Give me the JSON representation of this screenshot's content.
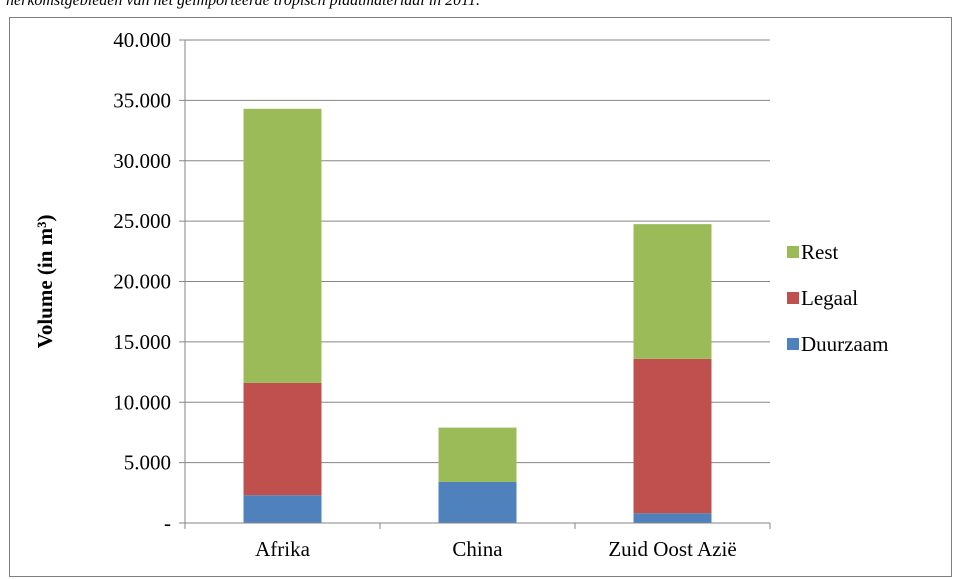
{
  "caption": "herkomstgebieden van het geïmporteerde tropisch plaatmateriaal in 2011.",
  "chart_data": {
    "type": "bar",
    "stacked": true,
    "categories": [
      "Afrika",
      "China",
      "Zuid Oost Azië"
    ],
    "series": [
      {
        "name": "Duurzaam",
        "color": "#4f81bd",
        "values": [
          2300,
          3400,
          800
        ]
      },
      {
        "name": "Legaal",
        "color": "#c0504d",
        "values": [
          9300,
          0,
          12800
        ]
      },
      {
        "name": "Rest",
        "color": "#9bbb59",
        "values": [
          22700,
          4500,
          11150
        ]
      }
    ],
    "ylabel": "Volume (in m³)",
    "ylim": [
      0,
      40000
    ],
    "yticks": [
      0,
      5000,
      10000,
      15000,
      20000,
      25000,
      30000,
      35000,
      40000
    ],
    "ytick_labels": [
      "-",
      "5.000",
      "10.000",
      "15.000",
      "20.000",
      "25.000",
      "30.000",
      "35.000",
      "40.000"
    ],
    "grid": true,
    "legend_position": "right",
    "legend_order": [
      "Rest",
      "Legaal",
      "Duurzaam"
    ]
  }
}
